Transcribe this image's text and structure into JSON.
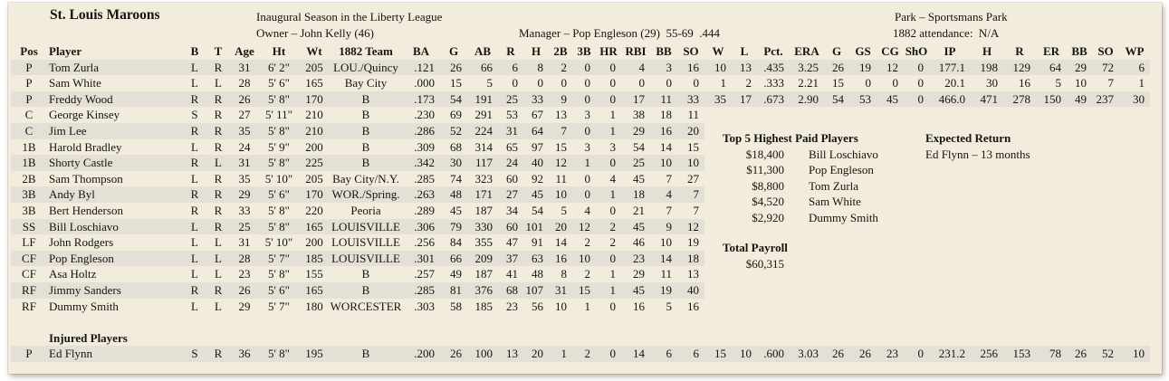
{
  "header": {
    "team_name": "St. Louis Maroons",
    "season_note": "Inaugural Season in the Liberty League",
    "owner_line": "Owner – John Kelly (46)",
    "manager_line": "Manager – Pop Engleson (29)  55-69  .444",
    "park_line": "Park – Sportsmans Park",
    "attendance_line": "1882 attendance:  N/A"
  },
  "roster": {
    "columns": [
      "Pos",
      "Player",
      "B",
      "T",
      "Age",
      "Ht",
      "Wt",
      "1882 Team",
      "BA",
      "G",
      "AB",
      "R",
      "H",
      "2B",
      "3B",
      "HR",
      "RBI",
      "BB",
      "SO",
      "W",
      "L",
      "Pct.",
      "ERA",
      "G",
      "GS",
      "CG",
      "ShO",
      "IP",
      "H",
      "R",
      "ER",
      "BB",
      "SO",
      "WP"
    ],
    "players": [
      {
        "pos": "P",
        "name": "Tom Zurla",
        "b": "L",
        "t": "R",
        "age": "31",
        "ht": "6' 2\"",
        "wt": "205",
        "team": "LOU./Quincy",
        "batting": [
          ".121",
          "26",
          "66",
          "6",
          "8",
          "2",
          "0",
          "0",
          "4",
          "3",
          "16"
        ],
        "pitching": [
          "10",
          "13",
          ".435",
          "3.25",
          "26",
          "19",
          "12",
          "0",
          "177.1",
          "198",
          "129",
          "64",
          "29",
          "72",
          "6"
        ]
      },
      {
        "pos": "P",
        "name": "Sam White",
        "b": "L",
        "t": "L",
        "age": "28",
        "ht": "5' 6\"",
        "wt": "165",
        "team": "Bay City",
        "batting": [
          ".000",
          "15",
          "5",
          "0",
          "0",
          "0",
          "0",
          "0",
          "0",
          "0",
          "0"
        ],
        "pitching": [
          "1",
          "2",
          ".333",
          "2.21",
          "15",
          "0",
          "0",
          "0",
          "20.1",
          "30",
          "16",
          "5",
          "10",
          "7",
          "1"
        ]
      },
      {
        "pos": "P",
        "name": "Freddy Wood",
        "b": "R",
        "t": "R",
        "age": "26",
        "ht": "5' 8\"",
        "wt": "170",
        "team": "B",
        "batting": [
          ".173",
          "54",
          "191",
          "25",
          "33",
          "9",
          "0",
          "0",
          "17",
          "11",
          "33"
        ],
        "pitching": [
          "35",
          "17",
          ".673",
          "2.90",
          "54",
          "53",
          "45",
          "0",
          "466.0",
          "471",
          "278",
          "150",
          "49",
          "237",
          "30"
        ]
      },
      {
        "pos": "C",
        "name": "George Kinsey",
        "b": "S",
        "t": "R",
        "age": "27",
        "ht": "5' 11\"",
        "wt": "210",
        "team": "B",
        "batting": [
          ".230",
          "69",
          "291",
          "53",
          "67",
          "13",
          "3",
          "1",
          "38",
          "18",
          "11"
        ],
        "pitching": null
      },
      {
        "pos": "C",
        "name": "Jim Lee",
        "b": "R",
        "t": "R",
        "age": "35",
        "ht": "5' 8\"",
        "wt": "210",
        "team": "B",
        "batting": [
          ".286",
          "52",
          "224",
          "31",
          "64",
          "7",
          "0",
          "1",
          "29",
          "16",
          "20"
        ],
        "pitching": null
      },
      {
        "pos": "1B",
        "name": "Harold Bradley",
        "b": "L",
        "t": "R",
        "age": "24",
        "ht": "5' 9\"",
        "wt": "200",
        "team": "B",
        "batting": [
          ".309",
          "68",
          "314",
          "65",
          "97",
          "15",
          "3",
          "3",
          "54",
          "14",
          "15"
        ],
        "pitching": null
      },
      {
        "pos": "1B",
        "name": "Shorty Castle",
        "b": "R",
        "t": "L",
        "age": "31",
        "ht": "5' 8\"",
        "wt": "225",
        "team": "B",
        "batting": [
          ".342",
          "30",
          "117",
          "24",
          "40",
          "12",
          "1",
          "0",
          "25",
          "10",
          "10"
        ],
        "pitching": null
      },
      {
        "pos": "2B",
        "name": "Sam Thompson",
        "b": "L",
        "t": "R",
        "age": "35",
        "ht": "5' 10\"",
        "wt": "205",
        "team": "Bay City/N.Y.",
        "batting": [
          ".285",
          "74",
          "323",
          "60",
          "92",
          "11",
          "0",
          "4",
          "45",
          "7",
          "27"
        ],
        "pitching": null
      },
      {
        "pos": "3B",
        "name": "Andy Byl",
        "b": "R",
        "t": "R",
        "age": "29",
        "ht": "5' 6\"",
        "wt": "170",
        "team": "WOR./Spring.",
        "batting": [
          ".263",
          "48",
          "171",
          "27",
          "45",
          "10",
          "0",
          "1",
          "18",
          "4",
          "7"
        ],
        "pitching": null
      },
      {
        "pos": "3B",
        "name": "Bert Henderson",
        "b": "R",
        "t": "R",
        "age": "33",
        "ht": "5' 8\"",
        "wt": "220",
        "team": "Peoria",
        "batting": [
          ".289",
          "45",
          "187",
          "34",
          "54",
          "5",
          "4",
          "0",
          "21",
          "7",
          "7"
        ],
        "pitching": null
      },
      {
        "pos": "SS",
        "name": "Bill Loschiavo",
        "b": "L",
        "t": "R",
        "age": "25",
        "ht": "5' 8\"",
        "wt": "165",
        "team": "LOUISVILLE",
        "batting": [
          ".306",
          "79",
          "330",
          "60",
          "101",
          "20",
          "12",
          "2",
          "45",
          "9",
          "12"
        ],
        "pitching": null
      },
      {
        "pos": "LF",
        "name": "John Rodgers",
        "b": "L",
        "t": "L",
        "age": "31",
        "ht": "5' 10\"",
        "wt": "200",
        "team": "LOUISVILLE",
        "batting": [
          ".256",
          "84",
          "355",
          "47",
          "91",
          "14",
          "2",
          "2",
          "46",
          "10",
          "19"
        ],
        "pitching": null
      },
      {
        "pos": "CF",
        "name": "Pop Engleson",
        "b": "L",
        "t": "L",
        "age": "28",
        "ht": "5' 7\"",
        "wt": "185",
        "team": "LOUISVILLE",
        "batting": [
          ".301",
          "66",
          "209",
          "37",
          "63",
          "16",
          "10",
          "0",
          "23",
          "14",
          "18"
        ],
        "pitching": null
      },
      {
        "pos": "CF",
        "name": "Asa Holtz",
        "b": "L",
        "t": "L",
        "age": "23",
        "ht": "5' 8\"",
        "wt": "155",
        "team": "B",
        "batting": [
          ".257",
          "49",
          "187",
          "41",
          "48",
          "8",
          "2",
          "1",
          "29",
          "11",
          "13"
        ],
        "pitching": null
      },
      {
        "pos": "RF",
        "name": "Jimmy Sanders",
        "b": "R",
        "t": "R",
        "age": "26",
        "ht": "5' 6\"",
        "wt": "165",
        "team": "B",
        "batting": [
          ".285",
          "81",
          "376",
          "68",
          "107",
          "31",
          "15",
          "1",
          "45",
          "19",
          "40"
        ],
        "pitching": null
      },
      {
        "pos": "RF",
        "name": "Dummy Smith",
        "b": "L",
        "t": "L",
        "age": "29",
        "ht": "5' 7\"",
        "wt": "180",
        "team": "WORCESTER",
        "batting": [
          ".303",
          "58",
          "185",
          "23",
          "56",
          "10",
          "1",
          "0",
          "16",
          "5",
          "16"
        ],
        "pitching": null
      }
    ],
    "injured_title": "Injured Players",
    "injured_players": [
      {
        "pos": "P",
        "name": "Ed Flynn",
        "b": "S",
        "t": "R",
        "age": "36",
        "ht": "5' 8\"",
        "wt": "195",
        "team": "B",
        "batting": [
          ".200",
          "26",
          "100",
          "13",
          "20",
          "1",
          "2",
          "0",
          "14",
          "6",
          "6"
        ],
        "pitching": [
          "15",
          "10",
          ".600",
          "3.03",
          "26",
          "26",
          "23",
          "0",
          "231.2",
          "256",
          "153",
          "78",
          "26",
          "52",
          "10"
        ]
      }
    ]
  },
  "side_panel": {
    "top_paid_title": "Top 5 Highest Paid Players",
    "top_paid": [
      {
        "salary": "$18,400",
        "name": "Bill Loschiavo"
      },
      {
        "salary": "$11,300",
        "name": "Pop Engleson"
      },
      {
        "salary": "$8,800",
        "name": "Tom Zurla"
      },
      {
        "salary": "$4,520",
        "name": "Sam White"
      },
      {
        "salary": "$2,920",
        "name": "Dummy Smith"
      }
    ],
    "expected_return_title": "Expected Return",
    "expected_return_value": "Ed Flynn – 13 months",
    "total_payroll_title": "Total Payroll",
    "total_payroll_value": "$60,315"
  },
  "colors": {
    "sheet_bg": "#f2ecdd",
    "row_stripe": "#e4e0d5",
    "text": "#17130d"
  }
}
